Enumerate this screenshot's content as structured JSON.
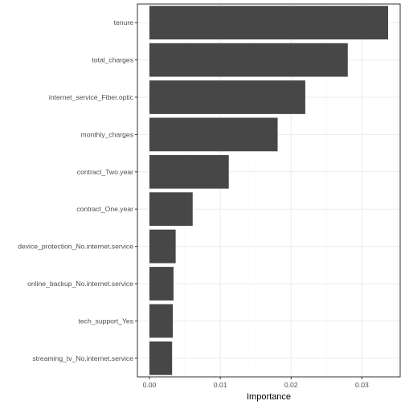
{
  "chart_data": {
    "type": "bar",
    "orientation": "horizontal",
    "categories": [
      "tenure",
      "total_charges",
      "internet_service_Fiber.optic",
      "monthly_charges",
      "contract_Two.year",
      "contract_One.year",
      "device_protection_No.internet.service",
      "online_backup_No.internet.service",
      "tech_support_Yes",
      "streaming_tv_No.internet.service"
    ],
    "values": [
      0.0337,
      0.028,
      0.022,
      0.0181,
      0.0112,
      0.0061,
      0.0037,
      0.0034,
      0.0033,
      0.0032
    ],
    "xlabel": "Importance",
    "ylabel": "",
    "title": "",
    "xlim": [
      -0.0017,
      0.0354
    ],
    "xticks": [
      0.0,
      0.01,
      0.02,
      0.03
    ],
    "xtick_labels": [
      "0.00",
      "0.01",
      "0.02",
      "0.03"
    ],
    "grid": true,
    "legend": "none",
    "bar_color": "#474747",
    "panel_border_color": "#333333",
    "grid_major_color": "#ebebeb",
    "grid_minor_color": "#f5f5f5"
  }
}
